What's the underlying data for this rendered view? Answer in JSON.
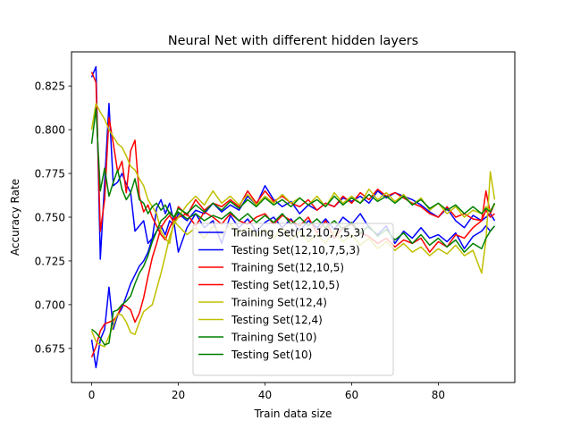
{
  "chart_data": {
    "type": "line",
    "title": "Neural Net with different hidden layers",
    "xlabel": "Train data size",
    "ylabel": "Accuracy Rate",
    "xlim": [
      -4.65,
      97.65
    ],
    "ylim": [
      0.6555,
      0.8445
    ],
    "xticks": [
      0,
      20,
      40,
      60,
      80
    ],
    "yticks": [
      0.675,
      0.7,
      0.725,
      0.75,
      0.775,
      0.8,
      0.825
    ],
    "ytick_labels": [
      "0.675",
      "0.700",
      "0.725",
      "0.750",
      "0.775",
      "0.800",
      "0.825"
    ],
    "grid": false,
    "legend_position": "lower center",
    "x": [
      0,
      1,
      2,
      3,
      4,
      5,
      6,
      7,
      8,
      9,
      10,
      11,
      12,
      13,
      14,
      15,
      16,
      17,
      18,
      19,
      20,
      22,
      24,
      26,
      28,
      30,
      32,
      34,
      36,
      38,
      40,
      42,
      44,
      46,
      48,
      50,
      52,
      54,
      56,
      58,
      60,
      62,
      64,
      66,
      68,
      70,
      72,
      74,
      76,
      78,
      80,
      82,
      84,
      86,
      88,
      90,
      91,
      92,
      93
    ],
    "series": [
      {
        "name": "Training Set(12,10,7,5,3)",
        "color": "#0000ff",
        "values": [
          0.83,
          0.836,
          0.726,
          0.77,
          0.815,
          0.768,
          0.77,
          0.775,
          0.769,
          0.764,
          0.742,
          0.745,
          0.748,
          0.735,
          0.738,
          0.755,
          0.76,
          0.752,
          0.758,
          0.747,
          0.73,
          0.744,
          0.752,
          0.744,
          0.748,
          0.735,
          0.751,
          0.744,
          0.749,
          0.742,
          0.747,
          0.75,
          0.744,
          0.749,
          0.742,
          0.748,
          0.744,
          0.749,
          0.743,
          0.75,
          0.746,
          0.752,
          0.744,
          0.74,
          0.745,
          0.735,
          0.742,
          0.738,
          0.744,
          0.738,
          0.74,
          0.736,
          0.741,
          0.732,
          0.739,
          0.742,
          0.745,
          0.742,
          0.745
        ]
      },
      {
        "name": "Testing Set(12,10,7,5,3)",
        "color": "#0000ff",
        "values": [
          0.68,
          0.664,
          0.68,
          0.686,
          0.71,
          0.686,
          0.694,
          0.698,
          0.705,
          0.712,
          0.717,
          0.722,
          0.725,
          0.73,
          0.738,
          0.742,
          0.745,
          0.74,
          0.748,
          0.745,
          0.752,
          0.748,
          0.754,
          0.752,
          0.758,
          0.753,
          0.757,
          0.754,
          0.762,
          0.757,
          0.768,
          0.76,
          0.756,
          0.759,
          0.752,
          0.757,
          0.754,
          0.758,
          0.756,
          0.761,
          0.759,
          0.762,
          0.758,
          0.765,
          0.761,
          0.764,
          0.762,
          0.76,
          0.757,
          0.753,
          0.75,
          0.755,
          0.748,
          0.744,
          0.751,
          0.748,
          0.75,
          0.752,
          0.748
        ]
      },
      {
        "name": "Training Set(12,10,5)",
        "color": "#ff0000",
        "values": [
          0.833,
          0.827,
          0.742,
          0.76,
          0.807,
          0.792,
          0.776,
          0.782,
          0.764,
          0.788,
          0.794,
          0.762,
          0.753,
          0.757,
          0.75,
          0.745,
          0.74,
          0.737,
          0.744,
          0.749,
          0.75,
          0.752,
          0.745,
          0.753,
          0.75,
          0.746,
          0.752,
          0.748,
          0.746,
          0.75,
          0.752,
          0.746,
          0.751,
          0.748,
          0.745,
          0.75,
          0.741,
          0.748,
          0.738,
          0.744,
          0.746,
          0.741,
          0.739,
          0.735,
          0.738,
          0.733,
          0.737,
          0.735,
          0.738,
          0.73,
          0.736,
          0.733,
          0.74,
          0.738,
          0.744,
          0.748,
          0.765,
          0.752,
          0.758
        ]
      },
      {
        "name": "Testing Set(12,10,5)",
        "color": "#ff0000",
        "values": [
          0.67,
          0.676,
          0.685,
          0.689,
          0.69,
          0.691,
          0.694,
          0.7,
          0.699,
          0.697,
          0.69,
          0.695,
          0.704,
          0.716,
          0.727,
          0.735,
          0.744,
          0.748,
          0.751,
          0.747,
          0.756,
          0.751,
          0.76,
          0.754,
          0.758,
          0.756,
          0.76,
          0.756,
          0.765,
          0.758,
          0.765,
          0.759,
          0.762,
          0.758,
          0.756,
          0.76,
          0.754,
          0.758,
          0.756,
          0.762,
          0.758,
          0.764,
          0.76,
          0.766,
          0.762,
          0.764,
          0.761,
          0.758,
          0.756,
          0.752,
          0.75,
          0.756,
          0.75,
          0.752,
          0.749,
          0.748,
          0.754,
          0.75,
          0.752
        ]
      },
      {
        "name": "Training Set(12,4)",
        "color": "#bfbf00",
        "values": [
          0.8,
          0.815,
          0.81,
          0.806,
          0.8,
          0.796,
          0.792,
          0.79,
          0.785,
          0.779,
          0.777,
          0.772,
          0.768,
          0.76,
          0.756,
          0.752,
          0.742,
          0.738,
          0.735,
          0.748,
          0.745,
          0.74,
          0.744,
          0.738,
          0.745,
          0.74,
          0.746,
          0.741,
          0.744,
          0.739,
          0.743,
          0.738,
          0.744,
          0.737,
          0.742,
          0.736,
          0.74,
          0.735,
          0.742,
          0.736,
          0.74,
          0.734,
          0.738,
          0.732,
          0.736,
          0.731,
          0.735,
          0.73,
          0.733,
          0.728,
          0.732,
          0.729,
          0.734,
          0.728,
          0.731,
          0.718,
          0.737,
          0.776,
          0.76
        ]
      },
      {
        "name": "Testing Set(12,4)",
        "color": "#bfbf00",
        "values": [
          0.685,
          0.679,
          0.677,
          0.676,
          0.682,
          0.688,
          0.695,
          0.694,
          0.69,
          0.684,
          0.683,
          0.69,
          0.696,
          0.698,
          0.7,
          0.709,
          0.718,
          0.728,
          0.739,
          0.746,
          0.75,
          0.757,
          0.762,
          0.757,
          0.765,
          0.758,
          0.762,
          0.757,
          0.763,
          0.757,
          0.762,
          0.758,
          0.763,
          0.758,
          0.761,
          0.757,
          0.762,
          0.756,
          0.764,
          0.758,
          0.762,
          0.758,
          0.766,
          0.76,
          0.764,
          0.759,
          0.763,
          0.757,
          0.761,
          0.754,
          0.758,
          0.752,
          0.756,
          0.75,
          0.754,
          0.752,
          0.756,
          0.754,
          0.757
        ]
      },
      {
        "name": "Training Set(10)",
        "color": "#008000",
        "values": [
          0.792,
          0.812,
          0.765,
          0.778,
          0.762,
          0.77,
          0.777,
          0.766,
          0.76,
          0.764,
          0.772,
          0.76,
          0.758,
          0.752,
          0.756,
          0.758,
          0.754,
          0.757,
          0.752,
          0.75,
          0.753,
          0.749,
          0.752,
          0.748,
          0.751,
          0.749,
          0.753,
          0.748,
          0.752,
          0.747,
          0.751,
          0.747,
          0.752,
          0.746,
          0.75,
          0.745,
          0.749,
          0.744,
          0.748,
          0.743,
          0.747,
          0.741,
          0.745,
          0.739,
          0.743,
          0.737,
          0.741,
          0.735,
          0.74,
          0.734,
          0.738,
          0.733,
          0.737,
          0.73,
          0.735,
          0.732,
          0.738,
          0.742,
          0.745
        ]
      },
      {
        "name": "Testing Set(10)",
        "color": "#008000",
        "values": [
          0.686,
          0.684,
          0.681,
          0.677,
          0.678,
          0.696,
          0.697,
          0.7,
          0.702,
          0.705,
          0.712,
          0.718,
          0.722,
          0.728,
          0.736,
          0.742,
          0.748,
          0.75,
          0.753,
          0.75,
          0.755,
          0.752,
          0.757,
          0.753,
          0.758,
          0.754,
          0.759,
          0.755,
          0.76,
          0.756,
          0.761,
          0.757,
          0.76,
          0.756,
          0.761,
          0.757,
          0.76,
          0.756,
          0.762,
          0.757,
          0.761,
          0.758,
          0.763,
          0.759,
          0.762,
          0.758,
          0.762,
          0.757,
          0.76,
          0.755,
          0.758,
          0.754,
          0.757,
          0.752,
          0.756,
          0.752,
          0.755,
          0.753,
          0.758
        ]
      }
    ]
  }
}
